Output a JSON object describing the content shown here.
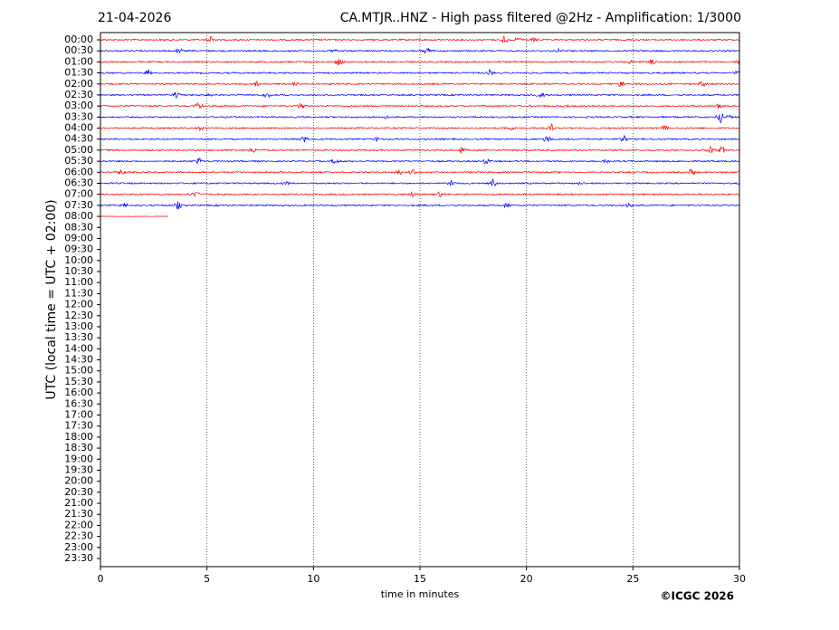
{
  "chart_data": {
    "type": "helicorder",
    "date": "21-04-2026",
    "title": "CA.MTJR..HNZ - High pass filtered @2Hz - Amplification: 1/3000",
    "ylabel": "UTC (local time = UTC + 02:00)",
    "xlabel": "time in minutes",
    "copyright": "©ICGC 2026",
    "categories": [
      "00:00",
      "00:30",
      "01:00",
      "01:30",
      "02:00",
      "02:30",
      "03:00",
      "03:30",
      "04:00",
      "04:30",
      "05:00",
      "05:30",
      "06:00",
      "06:30",
      "07:00",
      "07:30",
      "08:00",
      "08:30",
      "09:00",
      "09:30",
      "10:00",
      "10:30",
      "11:00",
      "11:30",
      "12:00",
      "12:30",
      "13:00",
      "13:30",
      "14:00",
      "14:30",
      "15:00",
      "15:30",
      "16:00",
      "16:30",
      "17:00",
      "17:30",
      "18:00",
      "18:30",
      "19:00",
      "19:30",
      "20:00",
      "20:30",
      "21:00",
      "21:30",
      "22:00",
      "22:30",
      "23:00",
      "23:30"
    ],
    "xlim": [
      0,
      30
    ],
    "xticks": [
      0,
      5,
      10,
      15,
      20,
      25,
      30
    ],
    "grid": true,
    "traces": [
      {
        "color": "#ff0000",
        "end": 30
      },
      {
        "color": "#0000ff",
        "end": 30
      },
      {
        "color": "#ff0000",
        "end": 30
      },
      {
        "color": "#0000ff",
        "end": 30
      },
      {
        "color": "#ff0000",
        "end": 30
      },
      {
        "color": "#0000ff",
        "end": 30
      },
      {
        "color": "#ff0000",
        "end": 30
      },
      {
        "color": "#0000ff",
        "end": 30
      },
      {
        "color": "#ff0000",
        "end": 30
      },
      {
        "color": "#0000ff",
        "end": 30
      },
      {
        "color": "#ff0000",
        "end": 30
      },
      {
        "color": "#0000ff",
        "end": 30
      },
      {
        "color": "#ff0000",
        "end": 30
      },
      {
        "color": "#0000ff",
        "end": 30
      },
      {
        "color": "#ff0000",
        "end": 30
      },
      {
        "color": "#0000ff",
        "end": 30
      },
      {
        "color": "#ff0000",
        "end": 3.2
      }
    ]
  }
}
